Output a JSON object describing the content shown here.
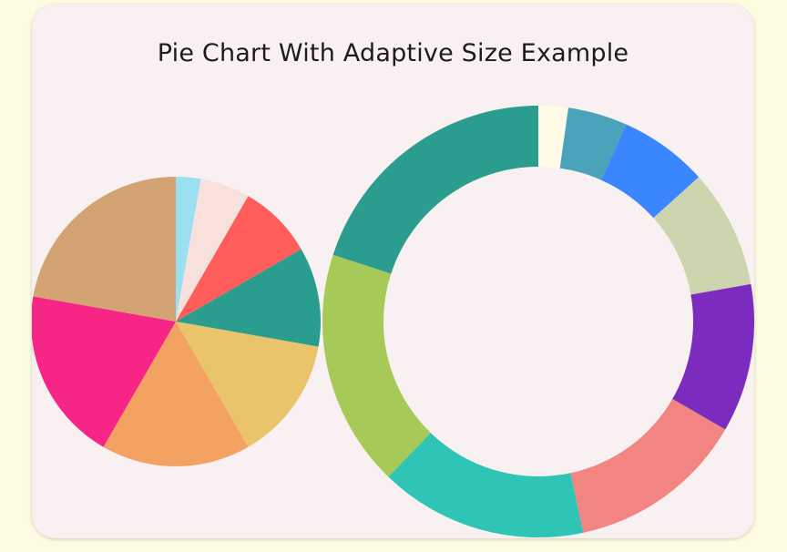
{
  "title": "Pie Chart With Adaptive Size Example",
  "chart_data": [
    {
      "type": "pie",
      "title": "",
      "start_angle_deg": -90,
      "slices": [
        {
          "value": 2.5,
          "color": "#9be0f1"
        },
        {
          "value": 5.0,
          "color": "#f8e1dc"
        },
        {
          "value": 7.5,
          "color": "#ff5c5c"
        },
        {
          "value": 10.0,
          "color": "#2a9d8f"
        },
        {
          "value": 12.5,
          "color": "#e9c46a"
        },
        {
          "value": 15.0,
          "color": "#f4a261"
        },
        {
          "value": 17.5,
          "color": "#f72585"
        },
        {
          "value": 20.0,
          "color": "#d4a373"
        }
      ]
    },
    {
      "type": "pie",
      "subtype": "donut",
      "title": "",
      "start_angle_deg": -90,
      "slices": [
        {
          "value": 2.5,
          "color": "#fffbe6"
        },
        {
          "value": 5.0,
          "color": "#4aa3ba"
        },
        {
          "value": 7.5,
          "color": "#3a86ff"
        },
        {
          "value": 10.0,
          "color": "#ccd5ae"
        },
        {
          "value": 12.5,
          "color": "#7b2cbf"
        },
        {
          "value": 15.0,
          "color": "#f28482"
        },
        {
          "value": 17.5,
          "color": "#2ec4b6"
        },
        {
          "value": 20.0,
          "color": "#a7c957"
        },
        {
          "value": 22.5,
          "color": "#2a9d8f"
        }
      ]
    }
  ]
}
